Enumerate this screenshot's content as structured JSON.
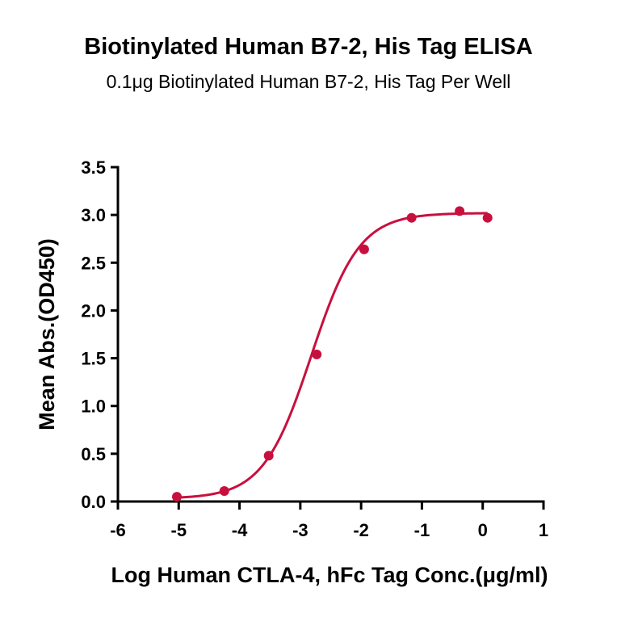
{
  "chart_data": {
    "type": "scatter",
    "title": "Biotinylated Human B7-2, His Tag ELISA",
    "subtitle": "0.1μg Biotinylated Human B7-2, His Tag Per Well",
    "xlabel": "Log Human CTLA-4, hFc Tag Conc.(μg/ml)",
    "ylabel": "Mean Abs.(OD450)",
    "xlim": [
      -6,
      1
    ],
    "ylim": [
      0,
      3.5
    ],
    "x_ticks": [
      "-6",
      "-5",
      "-4",
      "-3",
      "-2",
      "-1",
      "0",
      "1"
    ],
    "y_ticks": [
      "0.0",
      "0.5",
      "1.0",
      "1.5",
      "2.0",
      "2.5",
      "3.0",
      "3.5"
    ],
    "grid": false,
    "series": [
      {
        "x": [
          -5.03,
          -4.25,
          -3.52,
          -2.73,
          -1.95,
          -1.17,
          -0.38,
          0.08
        ],
        "y": [
          0.05,
          0.11,
          0.48,
          1.54,
          2.64,
          2.97,
          3.04,
          2.97
        ],
        "color": "#c8103e",
        "fit": "four-parameter logistic",
        "fit_params": {
          "bottom": 0.03,
          "top": 3.02,
          "logEC50": -2.82,
          "hill": 1.1
        }
      }
    ]
  }
}
